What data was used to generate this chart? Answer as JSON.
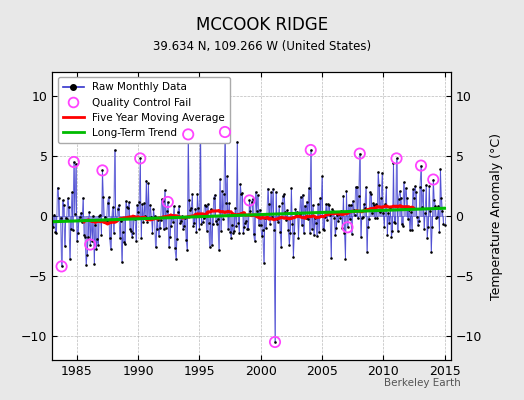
{
  "title": "MCCOOK RIDGE",
  "subtitle": "39.634 N, 109.266 W (United States)",
  "ylabel": "Temperature Anomaly (°C)",
  "watermark": "Berkeley Earth",
  "xlim": [
    1983.0,
    2015.5
  ],
  "ylim": [
    -12,
    12
  ],
  "yticks": [
    -10,
    -5,
    0,
    5,
    10
  ],
  "xticks": [
    1985,
    1990,
    1995,
    2000,
    2005,
    2010,
    2015
  ],
  "bg_color": "#e8e8e8",
  "plot_bg_color": "#ffffff",
  "raw_line_color": "#3333cc",
  "raw_dot_color": "#000000",
  "qc_color": "#ff44ff",
  "moving_avg_color": "#ff0000",
  "trend_color": "#00bb00",
  "seed": 12345,
  "start_year": 1983.083,
  "n_months": 384,
  "noise_std": 1.5,
  "trend_slope": 0.04,
  "trend_intercept": -0.6
}
